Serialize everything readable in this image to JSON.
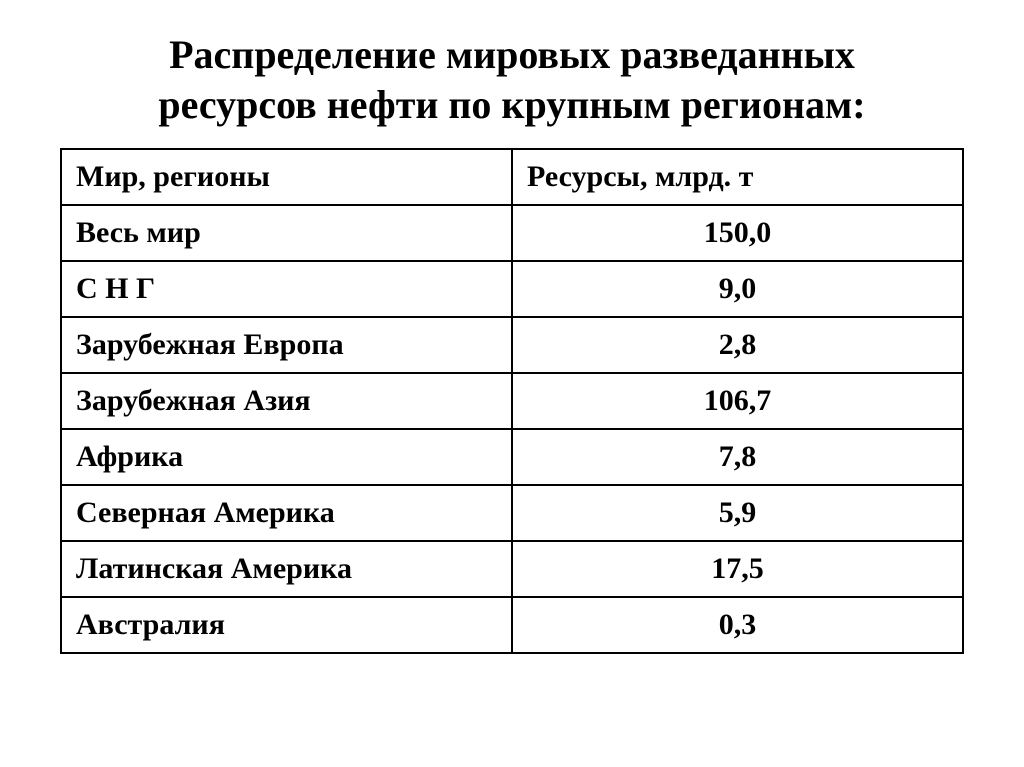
{
  "title": "Распределение мировых разведанных ресурсов нефти по крупным регионам:",
  "table": {
    "type": "table",
    "columns": [
      "Мир, регионы",
      "Ресурсы, млрд. т"
    ],
    "rows": [
      {
        "region": "Весь мир",
        "value": "150,0"
      },
      {
        "region": "С Н Г",
        "value": "9,0"
      },
      {
        "region": "Зарубежная Европа",
        "value": "2,8"
      },
      {
        "region": "Зарубежная Азия",
        "value": "106,7"
      },
      {
        "region": "Африка",
        "value": "7,8"
      },
      {
        "region": "Северная Америка",
        "value": "5,9"
      },
      {
        "region": "Латинская Америка",
        "value": "17,5"
      },
      {
        "region": "Австралия",
        "value": "0,3"
      }
    ],
    "border_color": "#000000",
    "border_width": 2,
    "background_color": "#ffffff",
    "text_color": "#000000",
    "font_family": "Times New Roman",
    "header_fontsize": 30,
    "body_fontsize": 30,
    "font_weight": "bold",
    "col_widths": [
      "50%",
      "50%"
    ],
    "col_align": [
      "left",
      "center"
    ]
  },
  "title_style": {
    "fontsize": 40,
    "font_weight": "bold",
    "align": "center",
    "color": "#000000"
  }
}
